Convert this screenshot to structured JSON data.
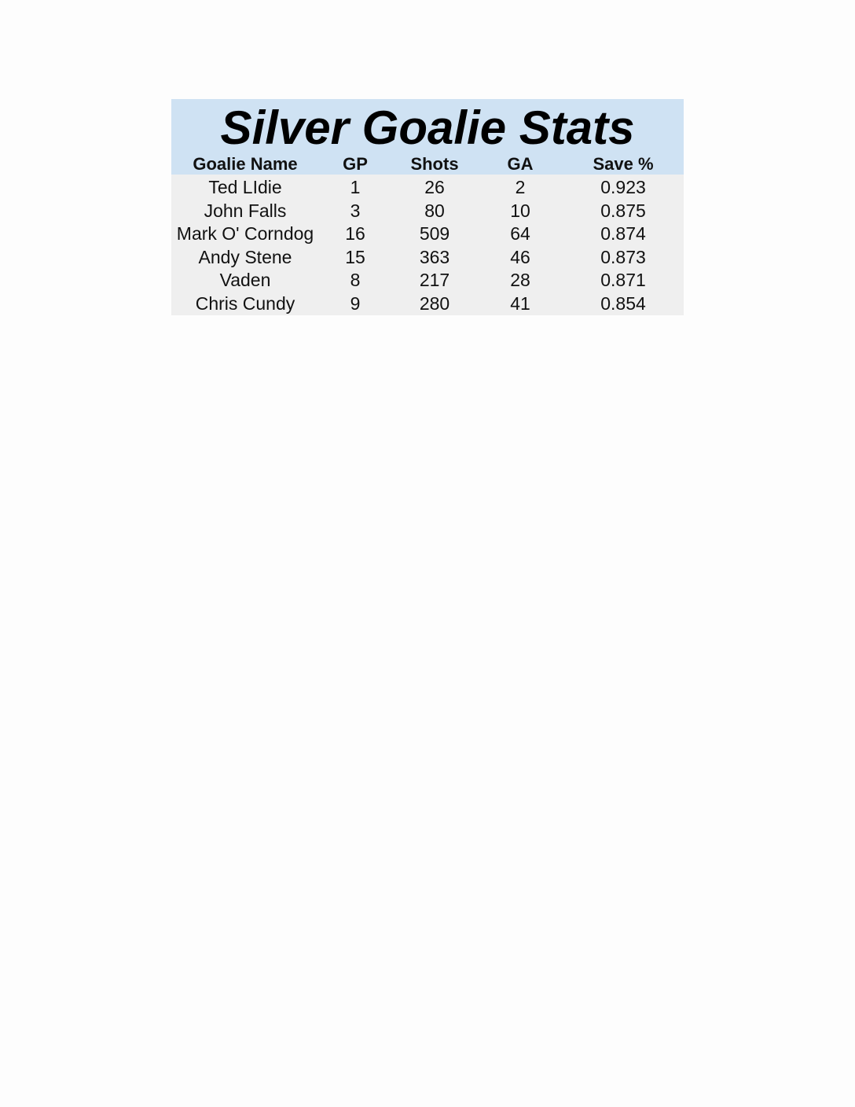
{
  "title": "Silver Goalie Stats",
  "columns": [
    "Goalie Name",
    "GP",
    "Shots",
    "GA",
    "Save %"
  ],
  "rows": [
    [
      "Ted LIdie",
      "1",
      "26",
      "2",
      "0.923"
    ],
    [
      "John Falls",
      "3",
      "80",
      "10",
      "0.875"
    ],
    [
      "Mark O' Corndog",
      "16",
      "509",
      "64",
      "0.874"
    ],
    [
      "Andy Stene",
      "15",
      "363",
      "46",
      "0.873"
    ],
    [
      "Vaden",
      "8",
      "217",
      "28",
      "0.871"
    ],
    [
      "Chris Cundy",
      "9",
      "280",
      "41",
      "0.854"
    ]
  ],
  "colors": {
    "header_bg": "#cfe2f3",
    "body_bg": "#efefef"
  }
}
